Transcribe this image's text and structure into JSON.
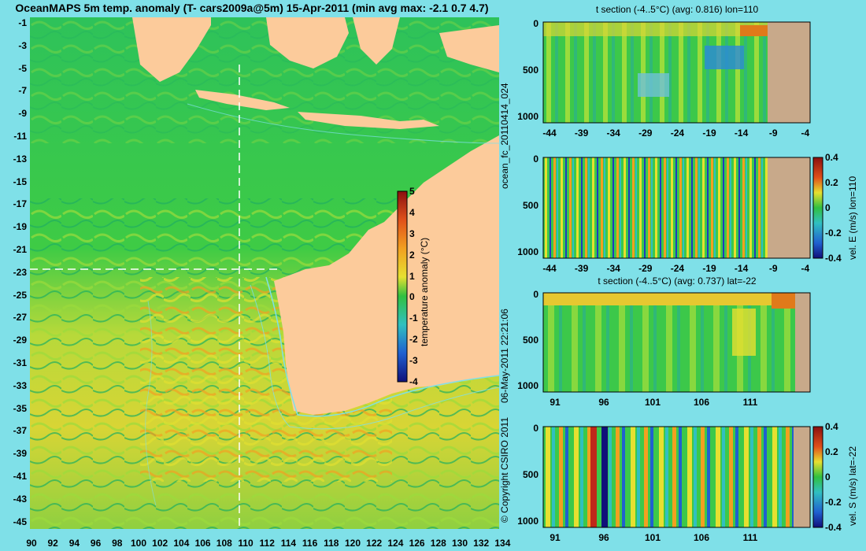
{
  "title": "OceanMAPS 5m temp. anomaly (T- cars2009a@5m) 15-Apr-2011 (min avg max: -2.1 0.7 4.7)",
  "map": {
    "lat_labels": [
      "-1",
      "-3",
      "-5",
      "-7",
      "-9",
      "-11",
      "-13",
      "-15",
      "-17",
      "-19",
      "-21",
      "-23",
      "-25",
      "-27",
      "-29",
      "-31",
      "-33",
      "-35",
      "-37",
      "-39",
      "-41",
      "-43",
      "-45"
    ],
    "lon_labels": [
      "90",
      "92",
      "94",
      "96",
      "98",
      "100",
      "102",
      "104",
      "106",
      "108",
      "110",
      "112",
      "114",
      "116",
      "118",
      "120",
      "122",
      "124",
      "126",
      "128",
      "130",
      "132",
      "134"
    ],
    "colorbar": {
      "label": "temperature anomaly (°C)",
      "ticks": [
        "5",
        "4",
        "3",
        "2",
        "1",
        "0",
        "-1",
        "-2",
        "-3",
        "-4"
      ]
    },
    "section_lat": "-22",
    "section_lon": "110"
  },
  "side_text": {
    "run": "ocean_fc_20110414_024",
    "date": "06-May-2011 22:21:06",
    "copyright": "© Copyright CSIRO 2011"
  },
  "panels": [
    {
      "title": "t section (-4..5°C) (avg: 0.816) lon=110",
      "y_ticks": [
        "0",
        "500",
        "1000"
      ],
      "x_ticks": [
        "-44",
        "-39",
        "-34",
        "-29",
        "-24",
        "-19",
        "-14",
        "-9",
        "-4"
      ]
    },
    {
      "title": "",
      "y_ticks": [
        "0",
        "500",
        "1000"
      ],
      "x_ticks": [
        "-44",
        "-39",
        "-34",
        "-29",
        "-24",
        "-19",
        "-14",
        "-9",
        "-4"
      ],
      "colorbar_label": "vel. E (m/s) lon=110",
      "colorbar_ticks": [
        "0.4",
        "0.2",
        "0",
        "-0.2",
        "-0.4"
      ]
    },
    {
      "title": "t section (-4..5°C) (avg: 0.737) lat=-22",
      "y_ticks": [
        "0",
        "500",
        "1000"
      ],
      "x_ticks": [
        "91",
        "96",
        "101",
        "106",
        "111"
      ]
    },
    {
      "title": "",
      "y_ticks": [
        "0",
        "500",
        "1000"
      ],
      "x_ticks": [
        "91",
        "96",
        "101",
        "106",
        "111"
      ],
      "colorbar_label": "vel. S (m/s) lat=-22",
      "colorbar_ticks": [
        "0.4",
        "0.2",
        "0",
        "-0.2",
        "-0.4"
      ]
    }
  ],
  "colors": {
    "land": "#fccb9b",
    "ocean_base": "#2ec25a",
    "warm": "#f2d22a",
    "hot": "#e07a1a",
    "coast_lines": "#7fe0e8",
    "section_land": "#c8a98a"
  }
}
